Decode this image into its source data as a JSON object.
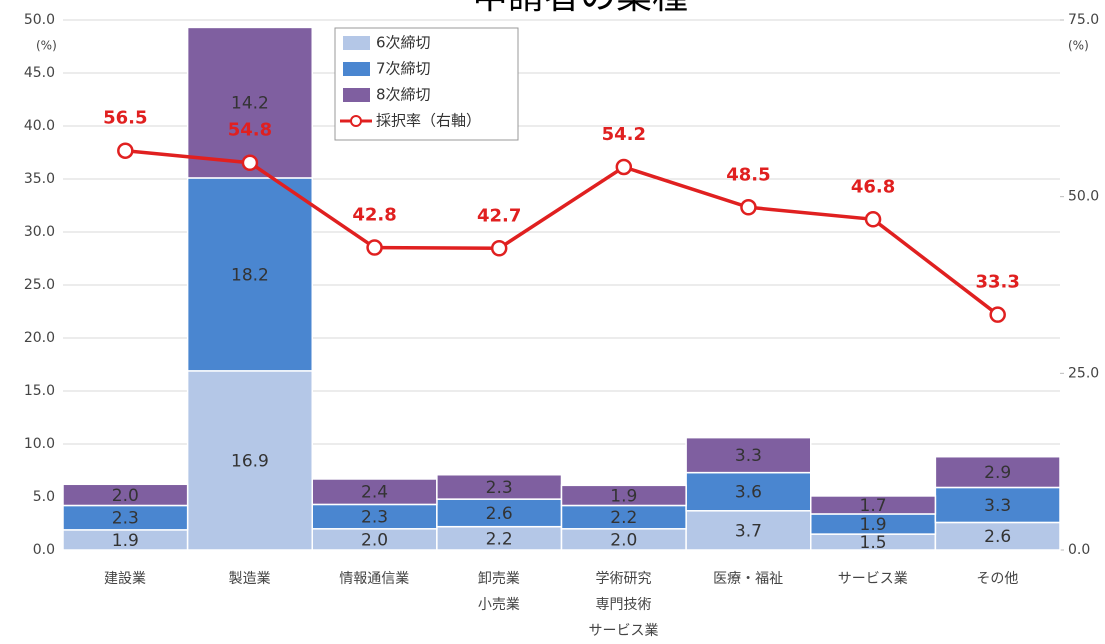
{
  "chart_data": {
    "type": "bar",
    "stacked": true,
    "title": "申請者の業種",
    "ylabel": "(%)",
    "y2label": "(%)",
    "categories": [
      "建設業",
      "製造業",
      "情報通信業",
      "卸売業\n小売業",
      "学術研究\n専門技術\nサービス業",
      "医療・福祉",
      "サービス業",
      "その他"
    ],
    "ylim": [
      0,
      50
    ],
    "yticks": [
      {
        "value": 0,
        "label": "0.0"
      },
      {
        "value": 5,
        "label": "5.0"
      },
      {
        "value": 10,
        "label": "10.0"
      },
      {
        "value": 15,
        "label": "15.0"
      },
      {
        "value": 20,
        "label": "20.0"
      },
      {
        "value": 25,
        "label": "25.0"
      },
      {
        "value": 30,
        "label": "30.0"
      },
      {
        "value": 35,
        "label": "35.0"
      },
      {
        "value": 40,
        "label": "40.0"
      },
      {
        "value": 45,
        "label": "45.0"
      },
      {
        "value": 50,
        "label": "50.0"
      }
    ],
    "y2lim": [
      0,
      75
    ],
    "y2ticks": [
      {
        "value": 0,
        "label": "0.0"
      },
      {
        "value": 25,
        "label": "25.0"
      },
      {
        "value": 50,
        "label": "50.0"
      },
      {
        "value": 75,
        "label": "75.0"
      }
    ],
    "grid": true,
    "series": [
      {
        "name": "6次締切",
        "color": "#b4c7e7",
        "values": [
          1.9,
          16.9,
          2.0,
          2.2,
          2.0,
          3.7,
          1.5,
          2.6
        ],
        "value_labels": [
          "1.9",
          "16.9",
          "2.0",
          "2.2",
          "2.0",
          "3.7",
          "1.5",
          "2.6"
        ]
      },
      {
        "name": "7次締切",
        "color": "#4a86d0",
        "values": [
          2.3,
          18.2,
          2.3,
          2.6,
          2.2,
          3.6,
          1.9,
          3.3
        ],
        "value_labels": [
          "2.3",
          "18.2",
          "2.3",
          "2.6",
          "2.2",
          "3.6",
          "1.9",
          "3.3"
        ]
      },
      {
        "name": "8次締切",
        "color": "#7f5fa0",
        "values": [
          2.0,
          14.2,
          2.4,
          2.3,
          1.9,
          3.3,
          1.7,
          2.9
        ],
        "value_labels": [
          "2.0",
          "14.2",
          "2.4",
          "2.3",
          "1.9",
          "3.3",
          "1.7",
          "2.9"
        ]
      },
      {
        "name": "採択率（右軸）",
        "color": "#e02020",
        "type": "line",
        "axis": "y2",
        "values": [
          56.5,
          54.8,
          42.8,
          42.7,
          54.2,
          48.5,
          46.8,
          33.3
        ]
      }
    ]
  }
}
